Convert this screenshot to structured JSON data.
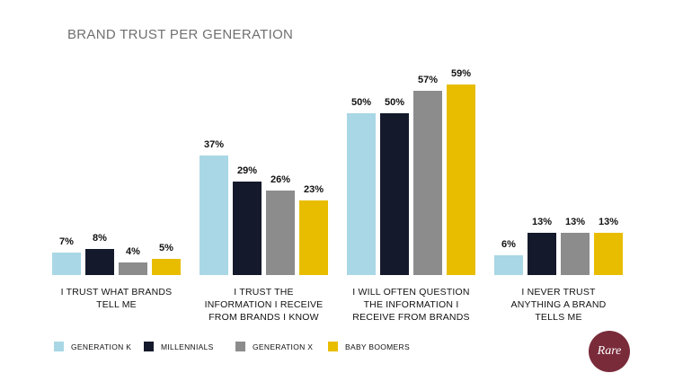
{
  "chart_data": {
    "type": "bar",
    "title": "BRAND TRUST PER GENERATION",
    "categories": [
      "I TRUST WHAT BRANDS\nTELL ME",
      "I TRUST THE\nINFORMATION I RECEIVE\nFROM BRANDS I KNOW",
      "I WILL OFTEN QUESTION\nTHE INFORMATION I\nRECEIVE FROM BRANDS",
      "I NEVER TRUST\nANYTHING A BRAND\nTELLS ME"
    ],
    "series": [
      {
        "name": "GENERATION K",
        "color": "#a9d7e5",
        "values": [
          7,
          37,
          50,
          6
        ],
        "value_labels": [
          "7%",
          "37%",
          "50%",
          "6%"
        ]
      },
      {
        "name": "MILLENNIALS",
        "color": "#141a2b",
        "values": [
          8,
          29,
          50,
          13
        ],
        "value_labels": [
          "8%",
          "29%",
          "50%",
          "13%"
        ]
      },
      {
        "name": "GENERATION X",
        "color": "#8c8c8c",
        "values": [
          4,
          26,
          57,
          13
        ],
        "value_labels": [
          "4%",
          "26%",
          "57%",
          "13%"
        ]
      },
      {
        "name": "BABY BOOMERS",
        "color": "#e8bd00",
        "values": [
          5,
          23,
          59,
          13
        ],
        "value_labels": [
          "5%",
          "23%",
          "59%",
          "13%"
        ]
      }
    ],
    "logo": "Rare"
  }
}
